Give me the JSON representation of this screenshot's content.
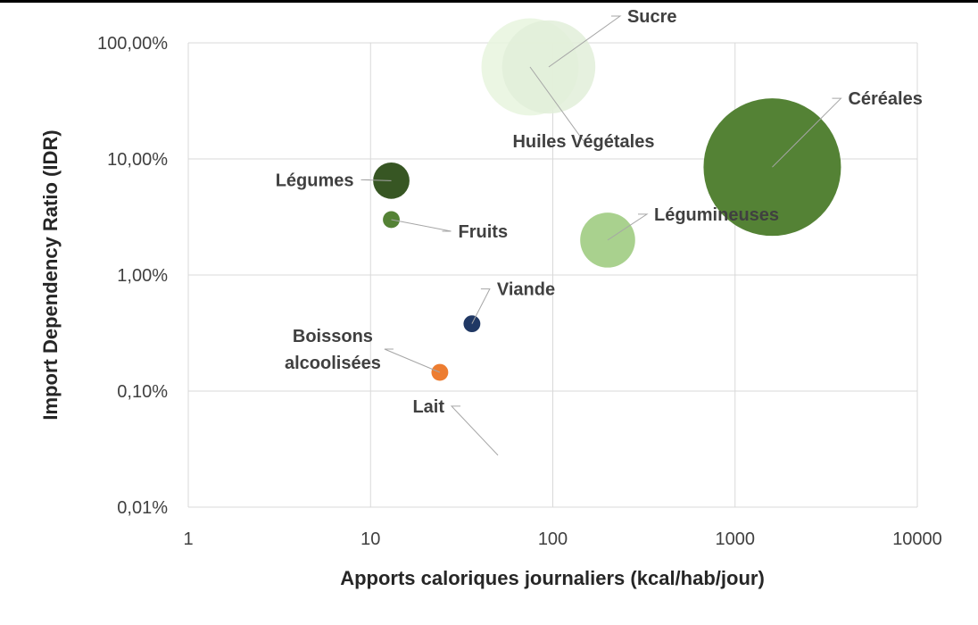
{
  "chart_data": {
    "type": "bubble",
    "xlabel": "Apports caloriques journaliers (kcal/hab/jour)",
    "ylabel": "Import Dependency Ratio (IDR)",
    "x_scale": "log",
    "y_scale": "log",
    "xlim": [
      1,
      10000
    ],
    "ylim": [
      0.01,
      100
    ],
    "x_ticks": [
      "1",
      "10",
      "100",
      "1000",
      "10000"
    ],
    "y_ticks": [
      "0,01%",
      "0,10%",
      "1,00%",
      "10,00%",
      "100,00%"
    ],
    "grid": true,
    "legend": "none",
    "points": [
      {
        "label": "Sucre",
        "x": 95,
        "y": 62,
        "bubble": 46,
        "color": "#e2efd9"
      },
      {
        "label": "Huiles Végétales",
        "x": 75,
        "y": 62,
        "bubble": 50,
        "color": "#e8f4de"
      },
      {
        "label": "Céréales",
        "x": 1600,
        "y": 8.5,
        "bubble": 100,
        "color": "#548235"
      },
      {
        "label": "Légumes",
        "x": 13,
        "y": 6.5,
        "bubble": 7,
        "color": "#375623"
      },
      {
        "label": "Fruits",
        "x": 13,
        "y": 3.0,
        "bubble": 1.5,
        "color": "#548235"
      },
      {
        "label": "Légumineuses",
        "x": 200,
        "y": 2.0,
        "bubble": 16,
        "color": "#a9d18e"
      },
      {
        "label": "Viande",
        "x": 36,
        "y": 0.38,
        "bubble": 1.5,
        "color": "#203864"
      },
      {
        "label": "Boissons alcoolisées",
        "x": 24,
        "y": 0.145,
        "bubble": 1.5,
        "color": "#ed7d31"
      },
      {
        "label": "Lait",
        "x": 50,
        "y": 0.028,
        "bubble": 0,
        "color": "#a6a6a6"
      }
    ]
  }
}
